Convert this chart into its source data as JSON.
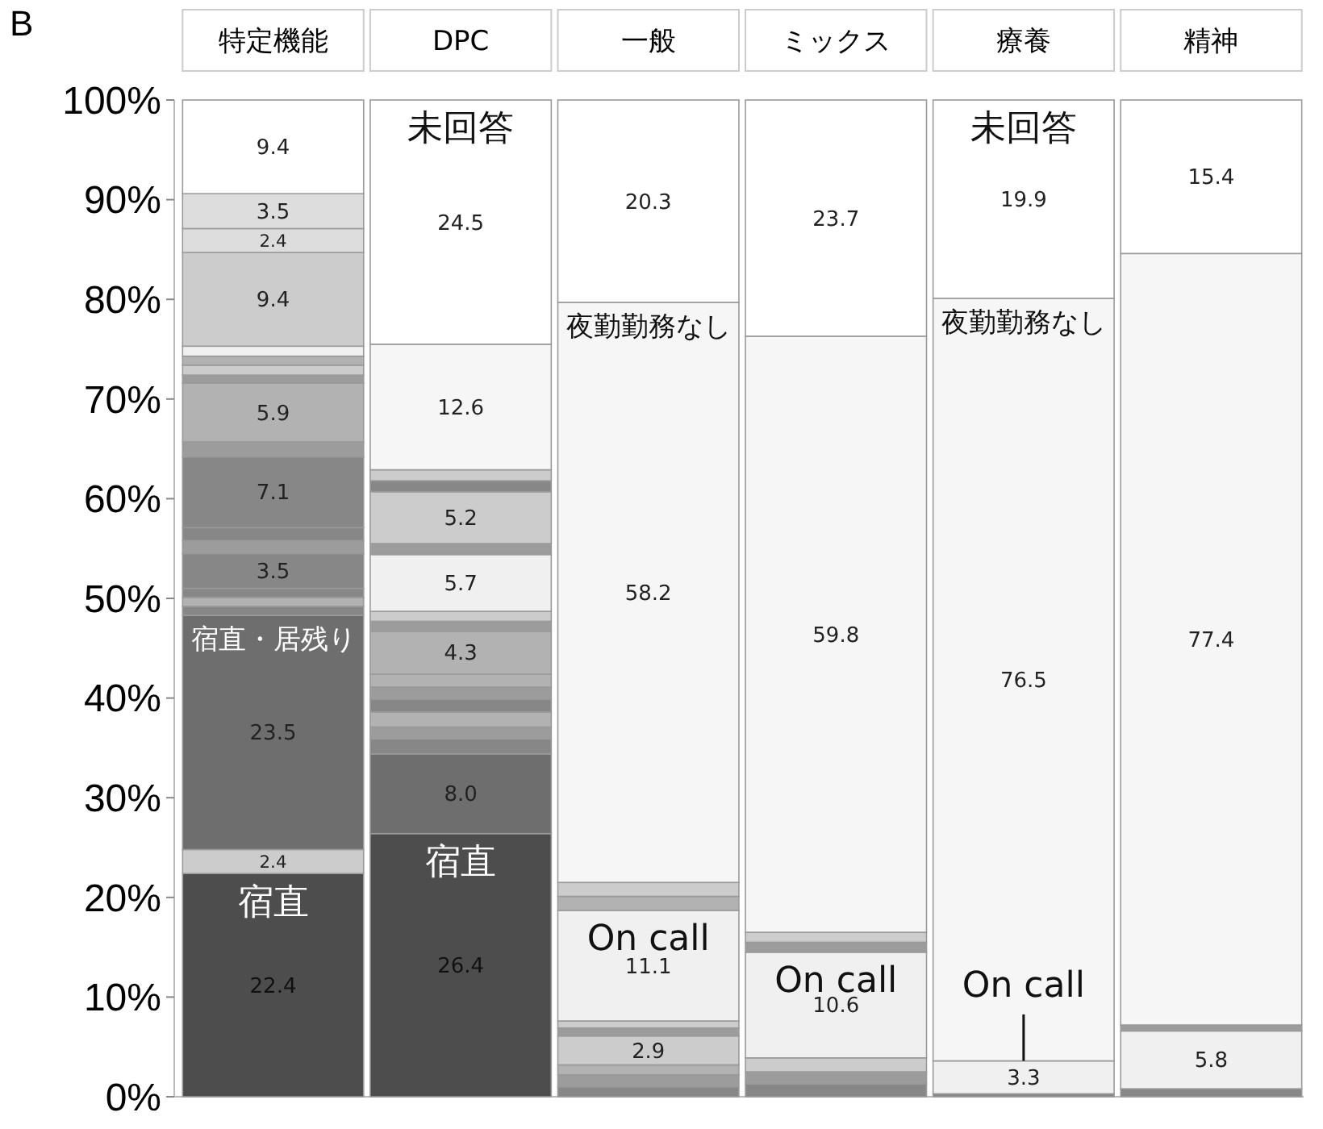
{
  "chart_data": {
    "type": "bar",
    "title": "B",
    "stacked": true,
    "categories": [
      "特定機能",
      "DPC",
      "一般",
      "ミックス",
      "療養",
      "精神"
    ],
    "ylim": [
      0,
      100
    ],
    "yticks": [
      {
        "value": 0,
        "label": "0%"
      },
      {
        "value": 10,
        "label": "10%"
      },
      {
        "value": 20,
        "label": "20%"
      },
      {
        "value": 30,
        "label": "30%"
      },
      {
        "value": 40,
        "label": "40%"
      },
      {
        "value": 50,
        "label": "50%"
      },
      {
        "value": 60,
        "label": "60%"
      },
      {
        "value": 70,
        "label": "70%"
      },
      {
        "value": 80,
        "label": "80%"
      },
      {
        "value": 90,
        "label": "90%"
      },
      {
        "value": 100,
        "label": "100%"
      }
    ],
    "grid": false,
    "series": [
      {
        "values": [
          22.4,
          26.4,
          1.0,
          1.3,
          0.3,
          0.8
        ],
        "colors": [
          "#4d4d4d",
          "#4d4d4d",
          "#878787",
          "#878787",
          "#878787",
          "#878787"
        ],
        "value_labels": [
          "22.4",
          "26.4",
          null,
          null,
          null,
          null
        ]
      },
      {
        "values": [
          2.4,
          8.0,
          1.2,
          1.2,
          3.3,
          5.8
        ],
        "colors": [
          "#cccccc",
          "#6e6e6e",
          "#9c9c9c",
          "#9c9c9c",
          "#f0f0f0",
          "#f0f0f0"
        ],
        "value_labels": [
          "2.4",
          "8.0",
          null,
          null,
          "3.3",
          "5.8"
        ]
      },
      {
        "values": [
          23.5,
          1.5,
          1.0,
          1.4,
          76.5,
          0.6
        ],
        "colors": [
          "#6e6e6e",
          "#878787",
          "#b2b2b2",
          "#cccccc",
          "#f6f6f6",
          "#9c9c9c"
        ],
        "value_labels": [
          "23.5",
          null,
          null,
          null,
          "76.5",
          null
        ]
      },
      {
        "values": [
          0.9,
          1.2,
          2.9,
          10.6,
          19.9,
          77.4
        ],
        "colors": [
          "#878787",
          "#9c9c9c",
          "#cccccc",
          "#f0f0f0",
          "#ffffff",
          "#f6f6f6"
        ],
        "value_labels": [
          null,
          null,
          "2.9",
          "10.6",
          "19.9",
          "77.4"
        ]
      },
      {
        "values": [
          0.9,
          1.5,
          0.8,
          1.0,
          null,
          15.4
        ],
        "colors": [
          "#b2b2b2",
          "#b2b2b2",
          "#9c9c9c",
          "#9c9c9c",
          null,
          "#ffffff"
        ],
        "value_labels": [
          null,
          null,
          null,
          null,
          null,
          "15.4"
        ]
      },
      {
        "values": [
          0.9,
          1.3,
          0.7,
          1.0,
          null,
          null
        ],
        "colors": [
          "#878787",
          "#878787",
          "#cccccc",
          "#cccccc",
          null,
          null
        ],
        "value_labels": [
          null,
          null,
          null,
          null,
          null,
          null
        ]
      },
      {
        "values": [
          3.5,
          1.2,
          11.1,
          59.8,
          null,
          null
        ],
        "colors": [
          "#878787",
          "#9c9c9c",
          "#f0f0f0",
          "#f6f6f6",
          null,
          null
        ],
        "value_labels": [
          "3.5",
          null,
          "11.1",
          "59.8",
          null,
          null
        ]
      },
      {
        "values": [
          1.3,
          1.3,
          1.4,
          23.7,
          null,
          null
        ],
        "colors": [
          "#9c9c9c",
          "#b2b2b2",
          "#b2b2b2",
          "#ffffff",
          null,
          null
        ],
        "value_labels": [
          null,
          null,
          null,
          "23.7",
          null,
          null
        ]
      },
      {
        "values": [
          1.3,
          4.3,
          1.4,
          null,
          null,
          null
        ],
        "colors": [
          "#878787",
          "#b2b2b2",
          "#cccccc",
          null,
          null,
          null
        ],
        "value_labels": [
          null,
          "4.3",
          null,
          null,
          null,
          null
        ]
      },
      {
        "values": [
          7.1,
          1.0,
          58.2,
          null,
          null,
          null
        ],
        "colors": [
          "#878787",
          "#9c9c9c",
          "#f6f6f6",
          null,
          null,
          null
        ],
        "value_labels": [
          "7.1",
          null,
          "58.2",
          null,
          null,
          null
        ]
      },
      {
        "values": [
          1.5,
          1.0,
          20.3,
          null,
          null,
          null
        ],
        "colors": [
          "#9c9c9c",
          "#cccccc",
          "#ffffff",
          null,
          null,
          null
        ],
        "value_labels": [
          null,
          null,
          "20.3",
          null,
          null,
          null
        ]
      },
      {
        "values": [
          5.9,
          5.7,
          null,
          null,
          null,
          null
        ],
        "colors": [
          "#b2b2b2",
          "#f0f0f0",
          null,
          null,
          null,
          null
        ],
        "value_labels": [
          "5.9",
          "5.7",
          null,
          null,
          null,
          null
        ]
      },
      {
        "values": [
          0.8,
          1.1,
          null,
          null,
          null,
          null
        ],
        "colors": [
          "#9c9c9c",
          "#9c9c9c",
          null,
          null,
          null,
          null
        ],
        "value_labels": [
          null,
          null,
          null,
          null,
          null,
          null
        ]
      },
      {
        "values": [
          1.0,
          5.2,
          null,
          null,
          null,
          null
        ],
        "colors": [
          "#cccccc",
          "#cccccc",
          null,
          null,
          null,
          null
        ],
        "value_labels": [
          null,
          "5.2",
          null,
          null,
          null,
          null
        ]
      },
      {
        "values": [
          0.9,
          1.1,
          null,
          null,
          null,
          null
        ],
        "colors": [
          "#b2b2b2",
          "#878787",
          null,
          null,
          null,
          null
        ],
        "value_labels": [
          null,
          null,
          null,
          null,
          null,
          null
        ]
      },
      {
        "values": [
          1.0,
          1.1,
          null,
          null,
          null,
          null
        ],
        "colors": [
          "#f0f0f0",
          "#cccccc",
          null,
          null,
          null,
          null
        ],
        "value_labels": [
          null,
          null,
          null,
          null,
          null,
          null
        ]
      },
      {
        "values": [
          9.4,
          12.6,
          null,
          null,
          null,
          null
        ],
        "colors": [
          "#cccccc",
          "#f6f6f6",
          null,
          null,
          null,
          null
        ],
        "value_labels": [
          "9.4",
          "12.6",
          null,
          null,
          null,
          null
        ]
      },
      {
        "values": [
          2.4,
          24.5,
          null,
          null,
          null,
          null
        ],
        "colors": [
          "#dddddd",
          "#ffffff",
          null,
          null,
          null,
          null
        ],
        "value_labels": [
          "2.4",
          "24.5",
          null,
          null,
          null,
          null
        ]
      },
      {
        "values": [
          3.5,
          null,
          null,
          null,
          null,
          null
        ],
        "colors": [
          "#dddddd",
          null,
          null,
          null,
          null,
          null
        ],
        "value_labels": [
          "3.5",
          null,
          null,
          null,
          null,
          null
        ]
      },
      {
        "values": [
          9.4,
          null,
          null,
          null,
          null,
          null
        ],
        "colors": [
          "#ffffff",
          null,
          null,
          null,
          null,
          null
        ],
        "value_labels": [
          "9.4",
          null,
          null,
          null,
          null,
          null
        ]
      }
    ],
    "annotations": [
      {
        "text": "宿直",
        "x": "特定機能",
        "y": 22.4
      },
      {
        "text": "宿直",
        "x": "DPC",
        "y": 26.4
      },
      {
        "text": "宿直・居残り",
        "x": "特定機能",
        "y": 48.3
      },
      {
        "text": "未回答",
        "x": "DPC",
        "y": 100
      },
      {
        "text": "未回答",
        "x": "療養",
        "y": 100
      },
      {
        "text": "夜勤勤務なし",
        "x": "一般",
        "y": 79.7
      },
      {
        "text": "夜勤勤務なし",
        "x": "療養",
        "y": 80.1
      },
      {
        "text": "On call",
        "x": "一般",
        "y": 18.7
      },
      {
        "text": "On call",
        "x": "ミックス",
        "y": 14.5
      },
      {
        "text": "On call",
        "x": "療養",
        "y": 3.6
      }
    ]
  }
}
